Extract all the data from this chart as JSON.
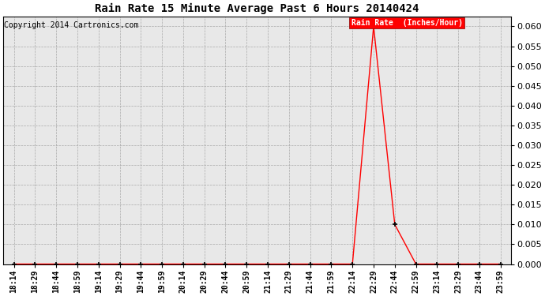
{
  "title": "Rain Rate 15 Minute Average Past 6 Hours 20140424",
  "copyright": "Copyright 2014 Cartronics.com",
  "legend_label": "Rain Rate  (Inches/Hour)",
  "line_color": "red",
  "marker_color": "black",
  "background_color": "#e8e8e8",
  "grid_color": "#aaaaaa",
  "ylim": [
    0.0,
    0.0625
  ],
  "yticks": [
    0.0,
    0.005,
    0.01,
    0.015,
    0.02,
    0.025,
    0.03,
    0.035,
    0.04,
    0.045,
    0.05,
    0.055,
    0.06
  ],
  "x_labels": [
    "18:14",
    "18:29",
    "18:44",
    "18:59",
    "19:14",
    "19:29",
    "19:44",
    "19:59",
    "20:14",
    "20:29",
    "20:44",
    "20:59",
    "21:14",
    "21:29",
    "21:44",
    "21:59",
    "22:14",
    "22:29",
    "22:44",
    "22:59",
    "23:14",
    "23:29",
    "23:44",
    "23:59"
  ],
  "rain_values": [
    0.0,
    0.0,
    0.0,
    0.0,
    0.0,
    0.0,
    0.0,
    0.0,
    0.0,
    0.0,
    0.0,
    0.0,
    0.0,
    0.0,
    0.0,
    0.0,
    0.0,
    0.06,
    0.01,
    0.0,
    0.0,
    0.0,
    0.0,
    0.0
  ],
  "title_fontsize": 10,
  "copyright_fontsize": 7,
  "legend_fontsize": 7,
  "tick_fontsize": 7,
  "ytick_fontsize": 8
}
